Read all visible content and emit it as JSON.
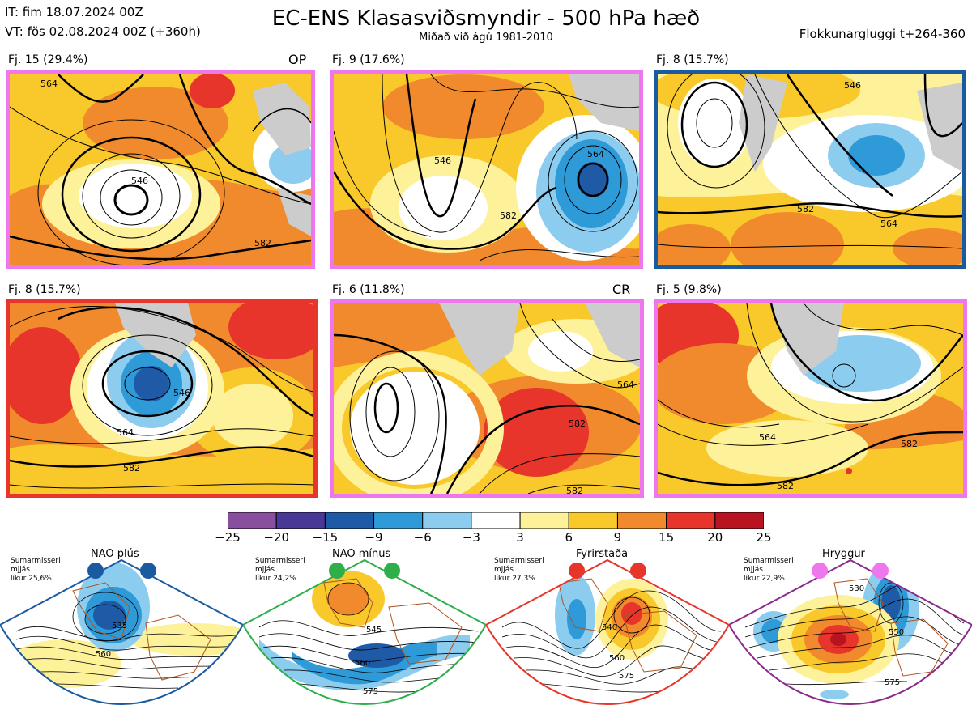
{
  "header": {
    "init": "IT: fim 18.07.2024 00Z",
    "valid": "VT: fös 02.08.2024 00Z  (+360h)",
    "title": "EC-ENS Klasasviðsmyndir - 500 hPa hæð",
    "subtitle": "Miðað við ágú 1981-2010",
    "window": "Flokkunargluggi t+264-360"
  },
  "panels": [
    {
      "label": "Fj. 15 (29.4%)",
      "tag": "OP",
      "border": "#ee77ee"
    },
    {
      "label": "Fj. 9 (17.6%)",
      "tag": "",
      "border": "#ee77ee"
    },
    {
      "label": "Fj. 8 (15.7%)",
      "tag": "",
      "border": "#1a5aa0"
    },
    {
      "label": "Fj. 8 (15.7%)",
      "tag": "",
      "border": "#e8352c"
    },
    {
      "label": "Fj. 6 (11.8%)",
      "tag": "CR",
      "border": "#ee77ee"
    },
    {
      "label": "Fj. 5 (9.8%)",
      "tag": "",
      "border": "#ee77ee"
    }
  ],
  "contour_labels": [
    "564",
    "546",
    "582"
  ],
  "colorbar": {
    "ticks": [
      "−25",
      "−20",
      "−15",
      "−9",
      "−6",
      "−3",
      "3",
      "6",
      "9",
      "15",
      "20",
      "25"
    ],
    "colors": [
      "#8a4e9e",
      "#4a3896",
      "#1f5aa6",
      "#2e9bd8",
      "#8cccee",
      "#ffffff",
      "#fdf19a",
      "#f9c82a",
      "#f08a2c",
      "#e8352c",
      "#b81320"
    ]
  },
  "regimes": [
    {
      "name": "NAO plús",
      "season": "Sumarmisseri",
      "similarity": "mjjás",
      "probability": "líkur 25,6%",
      "color": "#1a5aa0",
      "contours": [
        "535",
        "560"
      ]
    },
    {
      "name": "NAO mínus",
      "season": "Sumarmisseri",
      "similarity": "mjjás",
      "probability": "líkur 24,2%",
      "color": "#2fae4a",
      "contours": [
        "545",
        "560",
        "575"
      ]
    },
    {
      "name": "Fyrirstaða",
      "season": "Sumarmisseri",
      "similarity": "mjjás",
      "probability": "líkur 27,3%",
      "color": "#e8352c",
      "contours": [
        "540",
        "560",
        "575"
      ]
    },
    {
      "name": "Hryggur",
      "season": "Sumarmisseri",
      "similarity": "mjjás",
      "probability": "líkur 22,9%",
      "color": "#ee77ee",
      "contours": [
        "530",
        "550",
        "575"
      ]
    }
  ]
}
